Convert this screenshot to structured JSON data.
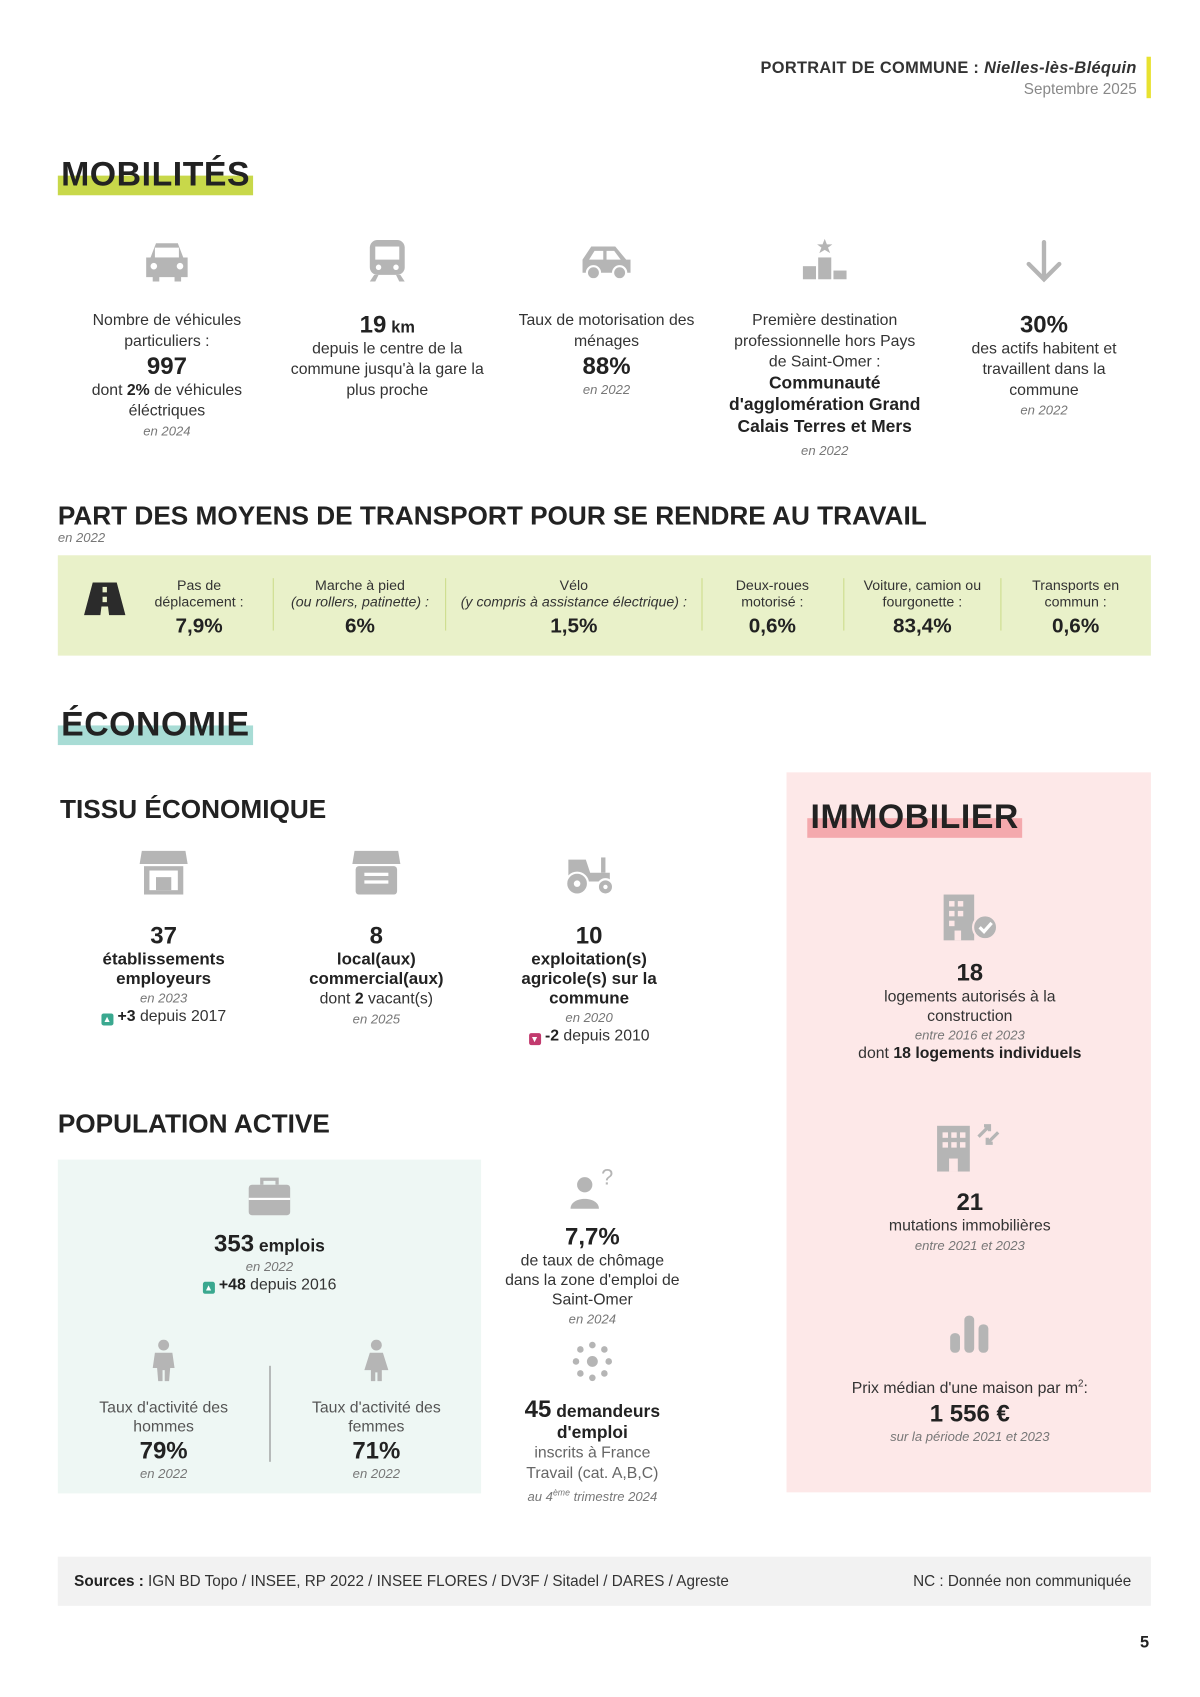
{
  "header": {
    "title": "PORTRAIT DE COMMUNE :",
    "commune": "Nielles-lès-Bléquin",
    "date": "Septembre 2025"
  },
  "mobilites": {
    "heading": "MOBILITÉS",
    "vehicules": {
      "label": "Nombre de véhicules particuliers :",
      "value": "997",
      "pre": "dont ",
      "pct": "2%",
      "post": " de véhicules éléctriques",
      "year": "en 2024"
    },
    "gare": {
      "value": "19",
      "unit": "km",
      "label": "depuis le centre de la commune jusqu'à la gare la plus proche"
    },
    "motorisation": {
      "label": "Taux de motorisation des ménages",
      "value": "88%",
      "year": "en 2022"
    },
    "destination": {
      "label": "Première destination professionnelle hors Pays de Saint-Omer :",
      "value": "Communauté d'agglomération Grand Calais Terres et Mers",
      "year": "en 2022"
    },
    "actifs": {
      "value": "30%",
      "label": "des actifs habitent et travaillent dans la commune",
      "year": "en 2022"
    }
  },
  "transport": {
    "title": "PART DES MOYENS DE TRANSPORT POUR SE RENDRE AU TRAVAIL",
    "year": "en 2022",
    "items": [
      {
        "label": "Pas de déplacement :",
        "sub": "",
        "value": "7,9%"
      },
      {
        "label": "Marche à pied",
        "sub": "(ou rollers, patinette) :",
        "value": "6%"
      },
      {
        "label": "Vélo",
        "sub": "(y compris à assistance électrique) :",
        "value": "1,5%"
      },
      {
        "label": "Deux-roues motorisé :",
        "sub": "",
        "value": "0,6%"
      },
      {
        "label": "Voiture, camion ou fourgonette :",
        "sub": "",
        "value": "83,4%"
      },
      {
        "label": "Transports en commun :",
        "sub": "",
        "value": "0,6%"
      }
    ]
  },
  "economie": {
    "heading": "ÉCONOMIE",
    "tissu": {
      "title": "TISSU ÉCONOMIQUE",
      "etab": {
        "value": "37",
        "label": "établissements employeurs",
        "year": "en 2023",
        "delta": "+3",
        "since": " depuis 2017"
      },
      "locaux": {
        "value": "8",
        "label": "local(aux) commercial(aux)",
        "pre": "dont ",
        "vacant": "2",
        "post": " vacant(s)",
        "year": "en 2025"
      },
      "agri": {
        "value": "10",
        "label": "exploitation(s) agricole(s) sur la commune",
        "year": "en 2020",
        "delta": "-2",
        "since": " depuis 2010"
      }
    },
    "population": {
      "title": "POPULATION ACTIVE",
      "emplois": {
        "value": "353",
        "unit": "emplois",
        "year": "en 2022",
        "delta": "+48",
        "since": " depuis 2016"
      },
      "hommes": {
        "label": "Taux d'activité des hommes",
        "value": "79%",
        "year": "en 2022"
      },
      "femmes": {
        "label": "Taux d'activité des femmes",
        "value": "71%",
        "year": "en 2022"
      },
      "chomage": {
        "value": "7,7%",
        "label": "de taux de chômage dans la zone d'emploi de Saint-Omer",
        "year": "en 2024"
      },
      "demandeurs": {
        "value": "45",
        "unit": "demandeurs d'emploi",
        "label": "inscrits à France Travail (cat. A,B,C)",
        "year_pre": "au 4",
        "year_sup": "ème",
        "year_post": " trimestre 2024"
      }
    }
  },
  "immobilier": {
    "heading": "IMMOBILIER",
    "logements": {
      "value": "18",
      "label": "logements autorisés à la construction",
      "year": "entre 2016 et 2023",
      "pre": "dont ",
      "n": "18 logements individuels"
    },
    "mutations": {
      "value": "21",
      "label": "mutations immobilières",
      "year": "entre 2021 et 2023"
    },
    "prix": {
      "label": "Prix médian d'une maison par m",
      "sup": "2",
      "colon": ":",
      "value": "1 556 €",
      "year": "sur la période 2021 et 2023"
    }
  },
  "footer": {
    "sources_label": "Sources :",
    "sources": " IGN BD Topo / INSEE, RP 2022 / INSEE FLORES / DV3F / Sitadel / DARES / Agreste",
    "nc": "NC : Donnée non communiquée",
    "page": "5"
  },
  "colors": {
    "mobilites": "#c8d84a",
    "economie": "#a8dcd5",
    "immobilier": "#f4a9ad",
    "band": "#e9f1c9"
  }
}
